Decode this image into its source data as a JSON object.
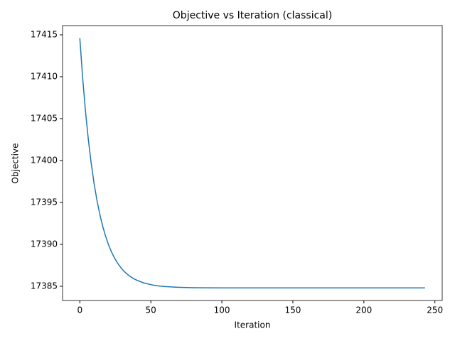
{
  "chart_data": {
    "type": "line",
    "title": "Objective vs Iteration (classical)",
    "x_label": "Iteration",
    "y_label": "Objective",
    "x": [
      0,
      2,
      4,
      6,
      8,
      10,
      12,
      14,
      16,
      18,
      20,
      22,
      24,
      26,
      28,
      30,
      32,
      34,
      36,
      38,
      40,
      45,
      50,
      55,
      60,
      70,
      80,
      100,
      150,
      200,
      243
    ],
    "series": [
      {
        "name": "Objective",
        "color": "#1f77b4",
        "values": [
          17414.6,
          17409.85,
          17405.86,
          17402.5,
          17399.68,
          17397.31,
          17395.31,
          17393.64,
          17392.23,
          17391.05,
          17390.05,
          17389.21,
          17388.51,
          17387.92,
          17387.42,
          17387.0,
          17386.65,
          17386.36,
          17386.11,
          17385.9,
          17385.73,
          17385.4,
          17385.19,
          17385.05,
          17384.96,
          17384.87,
          17384.83,
          17384.8,
          17384.8,
          17384.8,
          17384.8
        ]
      }
    ],
    "xlim": [
      -12.15,
      255.15
    ],
    "xticks": [
      0,
      50,
      100,
      150,
      200,
      250
    ],
    "ylim": [
      17383.3,
      17416.1
    ],
    "yticks": [
      17385,
      17390,
      17395,
      17400,
      17405,
      17410,
      17415
    ],
    "grid": false
  }
}
